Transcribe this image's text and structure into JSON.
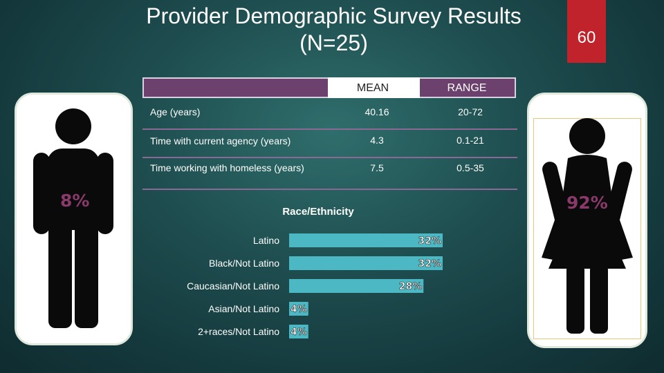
{
  "slide": {
    "title_line1": "Provider Demographic Survey Results",
    "title_line2": "(N=25)",
    "page_number": "60"
  },
  "gender": {
    "male_percent": "8%",
    "female_percent": "92%",
    "male_value": 8,
    "female_value": 92
  },
  "table": {
    "headers": {
      "mean": "MEAN",
      "range": "RANGE"
    },
    "rows": [
      {
        "label": "Age (years)",
        "mean": "40.16",
        "range": "20-72"
      },
      {
        "label": "Time with current agency (years)",
        "mean": "4.3",
        "range": "0.1-21"
      },
      {
        "label": "Time working with homeless (years)",
        "mean": "7.5",
        "range": "0.5-35"
      }
    ]
  },
  "colors": {
    "bar": "#4bb8c4",
    "header_bar": "#6d416e",
    "page_badge": "#c0232b",
    "percent_text": "#8a3a6a"
  },
  "chart_data": {
    "type": "bar",
    "orientation": "horizontal",
    "title": "Race/Ethnicity",
    "categories": [
      "Latino",
      "Black/Not Latino",
      "Caucasian/Not Latino",
      "Asian/Not Latino",
      "2+races/Not Latino"
    ],
    "values": [
      32,
      32,
      28,
      4,
      4
    ],
    "value_labels": [
      "32%",
      "32%",
      "28%",
      "4%",
      "4%"
    ],
    "unit": "%",
    "xlim": [
      0,
      32
    ],
    "grid": false
  }
}
